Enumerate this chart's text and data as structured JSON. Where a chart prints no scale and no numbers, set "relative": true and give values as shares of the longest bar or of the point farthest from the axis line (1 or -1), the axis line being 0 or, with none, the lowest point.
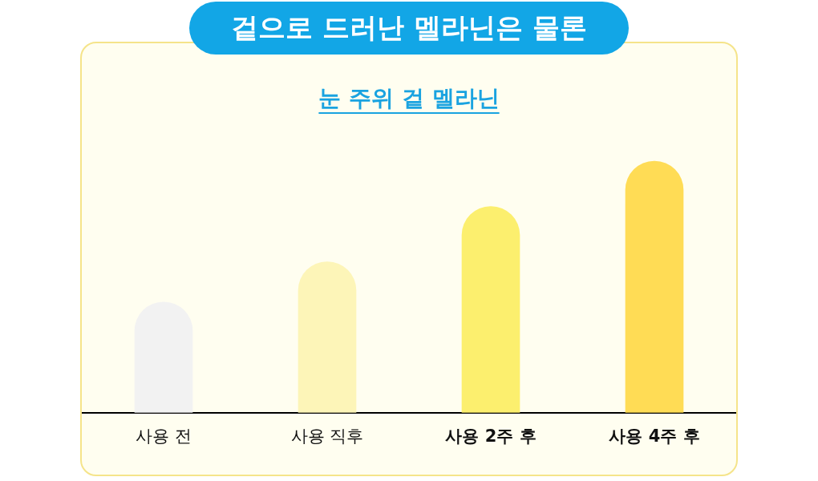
{
  "chart_data": {
    "type": "bar",
    "title": "겉으로 드러난 멜라닌은 물론",
    "subtitle": "눈 주위 겉 멜라닌",
    "relative": true,
    "categories": [
      "사용 전",
      "사용 직후",
      "사용 2주 후",
      "사용 4주 후"
    ],
    "values": [
      0.44,
      0.6,
      0.82,
      1
    ],
    "colors": [
      "#f2f2f2",
      "#fdf5b8",
      "#fcef6e",
      "#ffdc55"
    ],
    "grid": false,
    "legend": false
  }
}
